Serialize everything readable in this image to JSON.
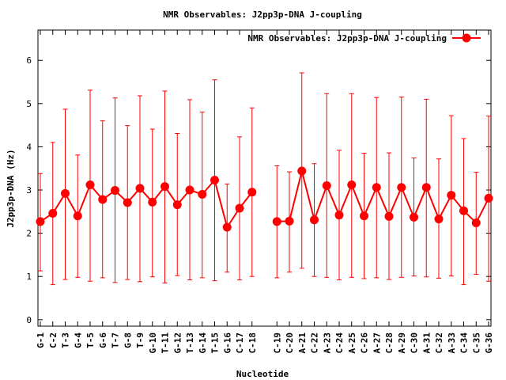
{
  "chart_data": {
    "type": "line",
    "title": "NMR Observables: J2pp3p-DNA J-coupling",
    "xlabel": "Nucleotide",
    "ylabel": "J2pp3p-DNA (Hz)",
    "ylim": [
      -0.15,
      6.7
    ],
    "yticks": [
      0,
      1,
      2,
      3,
      4,
      5,
      6
    ],
    "grid": false,
    "legend_position": "top-right",
    "color": "#ff0000",
    "categories": [
      "G-1",
      "C-2",
      "T-3",
      "G-4",
      "T-5",
      "G-6",
      "T-7",
      "G-8",
      "T-9",
      "G-10",
      "T-11",
      "G-12",
      "T-13",
      "G-14",
      "T-15",
      "G-16",
      "C-17",
      "C-18",
      "",
      "C-19",
      "C-20",
      "A-21",
      "C-22",
      "A-23",
      "C-24",
      "A-25",
      "C-26",
      "A-27",
      "C-28",
      "A-29",
      "C-30",
      "A-31",
      "C-32",
      "A-33",
      "C-34",
      "C-35",
      "G-36"
    ],
    "series": [
      {
        "name": "NMR Observables: J2pp3p-DNA J-coupling",
        "values": [
          2.27,
          2.46,
          2.92,
          2.4,
          3.12,
          2.78,
          2.99,
          2.71,
          3.04,
          2.72,
          3.08,
          2.66,
          3.0,
          2.9,
          3.23,
          2.14,
          2.58,
          2.95,
          null,
          2.27,
          2.28,
          3.44,
          2.31,
          3.1,
          2.42,
          3.12,
          2.4,
          3.06,
          2.39,
          3.06,
          2.37,
          3.06,
          2.33,
          2.88,
          2.52,
          2.24,
          2.81
        ],
        "err_low": [
          1.13,
          0.81,
          0.93,
          0.98,
          0.89,
          0.97,
          0.86,
          0.93,
          0.88,
          0.99,
          0.85,
          1.02,
          0.92,
          0.97,
          0.9,
          1.1,
          0.92,
          1.0,
          null,
          0.97,
          1.1,
          1.19,
          1.0,
          0.98,
          0.92,
          0.98,
          0.95,
          0.97,
          0.93,
          0.98,
          1.01,
          0.99,
          0.96,
          1.01,
          0.81,
          1.05,
          0.89
        ],
        "err_high": [
          3.38,
          4.1,
          4.87,
          3.81,
          5.31,
          4.6,
          5.13,
          4.49,
          5.18,
          4.41,
          5.29,
          4.31,
          5.09,
          4.8,
          5.55,
          3.14,
          4.23,
          4.9,
          null,
          3.56,
          3.42,
          5.71,
          3.61,
          5.23,
          3.92,
          5.23,
          3.85,
          5.14,
          3.86,
          5.15,
          3.74,
          5.1,
          3.72,
          4.72,
          4.19,
          3.41,
          4.71
        ]
      }
    ]
  }
}
